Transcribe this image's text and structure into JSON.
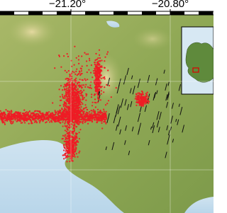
{
  "map": {
    "longitude_labels": [
      "−21.20°",
      "−20.80°"
    ]
  }
}
